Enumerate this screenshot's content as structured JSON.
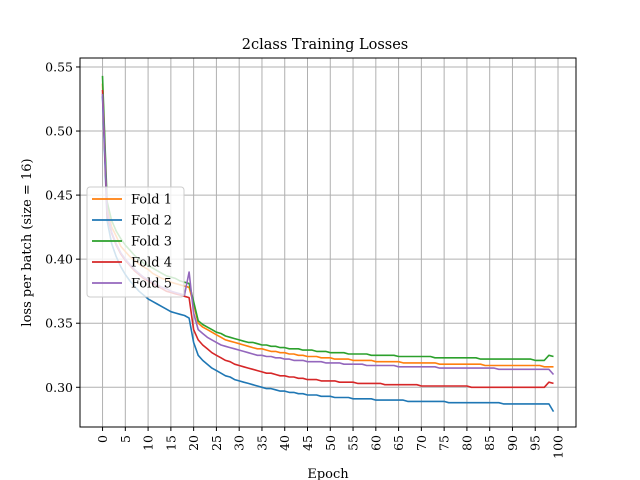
{
  "chart_data": {
    "type": "line",
    "title": "2class Training Losses",
    "xlabel": "Epoch",
    "ylabel": "loss per batch (size = 16)",
    "xlim": [
      -4.95,
      103.95
    ],
    "ylim": [
      0.269,
      0.557
    ],
    "x_ticks": [
      0,
      5,
      10,
      15,
      20,
      25,
      30,
      35,
      40,
      45,
      50,
      55,
      60,
      65,
      70,
      75,
      80,
      85,
      90,
      95,
      100
    ],
    "y_ticks": [
      0.3,
      0.35,
      0.4,
      0.45,
      0.5,
      0.55
    ],
    "y_tick_labels": [
      "0.30",
      "0.35",
      "0.40",
      "0.45",
      "0.50",
      "0.55"
    ],
    "grid": true,
    "legend_position": "center-left",
    "series": [
      {
        "name": "Fold 1",
        "color": "#ff7f0e",
        "values": [
          0.537,
          0.44,
          0.425,
          0.418,
          0.41,
          0.406,
          0.402,
          0.399,
          0.396,
          0.394,
          0.392,
          0.389,
          0.387,
          0.385,
          0.384,
          0.382,
          0.381,
          0.38,
          0.379,
          0.378,
          0.365,
          0.35,
          0.347,
          0.345,
          0.343,
          0.341,
          0.339,
          0.337,
          0.336,
          0.335,
          0.334,
          0.333,
          0.332,
          0.331,
          0.33,
          0.33,
          0.329,
          0.328,
          0.328,
          0.327,
          0.327,
          0.326,
          0.326,
          0.325,
          0.325,
          0.324,
          0.324,
          0.324,
          0.323,
          0.323,
          0.323,
          0.322,
          0.322,
          0.322,
          0.322,
          0.321,
          0.321,
          0.321,
          0.321,
          0.321,
          0.32,
          0.32,
          0.32,
          0.32,
          0.32,
          0.32,
          0.319,
          0.319,
          0.319,
          0.319,
          0.319,
          0.319,
          0.319,
          0.319,
          0.318,
          0.318,
          0.318,
          0.318,
          0.318,
          0.318,
          0.318,
          0.318,
          0.318,
          0.318,
          0.317,
          0.317,
          0.317,
          0.317,
          0.317,
          0.317,
          0.317,
          0.317,
          0.317,
          0.317,
          0.317,
          0.317,
          0.317,
          0.316,
          0.316,
          0.316
        ]
      },
      {
        "name": "Fold 2",
        "color": "#1f77b4",
        "values": [
          0.527,
          0.43,
          0.412,
          0.402,
          0.394,
          0.388,
          0.383,
          0.379,
          0.375,
          0.372,
          0.369,
          0.367,
          0.365,
          0.363,
          0.361,
          0.359,
          0.358,
          0.357,
          0.356,
          0.354,
          0.335,
          0.325,
          0.321,
          0.318,
          0.315,
          0.313,
          0.311,
          0.309,
          0.308,
          0.306,
          0.305,
          0.304,
          0.303,
          0.302,
          0.301,
          0.3,
          0.299,
          0.299,
          0.298,
          0.297,
          0.297,
          0.296,
          0.296,
          0.295,
          0.295,
          0.294,
          0.294,
          0.294,
          0.293,
          0.293,
          0.293,
          0.292,
          0.292,
          0.292,
          0.292,
          0.291,
          0.291,
          0.291,
          0.291,
          0.291,
          0.29,
          0.29,
          0.29,
          0.29,
          0.29,
          0.29,
          0.29,
          0.289,
          0.289,
          0.289,
          0.289,
          0.289,
          0.289,
          0.289,
          0.289,
          0.289,
          0.288,
          0.288,
          0.288,
          0.288,
          0.288,
          0.288,
          0.288,
          0.288,
          0.288,
          0.288,
          0.288,
          0.288,
          0.287,
          0.287,
          0.287,
          0.287,
          0.287,
          0.287,
          0.287,
          0.287,
          0.287,
          0.287,
          0.287,
          0.281
        ]
      },
      {
        "name": "Fold 3",
        "color": "#2ca02c",
        "values": [
          0.543,
          0.445,
          0.43,
          0.422,
          0.416,
          0.411,
          0.407,
          0.403,
          0.4,
          0.397,
          0.395,
          0.393,
          0.391,
          0.389,
          0.387,
          0.386,
          0.385,
          0.383,
          0.382,
          0.381,
          0.367,
          0.352,
          0.349,
          0.347,
          0.345,
          0.343,
          0.342,
          0.34,
          0.339,
          0.338,
          0.337,
          0.336,
          0.335,
          0.335,
          0.334,
          0.333,
          0.333,
          0.332,
          0.332,
          0.331,
          0.331,
          0.33,
          0.33,
          0.33,
          0.329,
          0.329,
          0.329,
          0.328,
          0.328,
          0.328,
          0.327,
          0.327,
          0.327,
          0.327,
          0.326,
          0.326,
          0.326,
          0.326,
          0.326,
          0.325,
          0.325,
          0.325,
          0.325,
          0.325,
          0.325,
          0.324,
          0.324,
          0.324,
          0.324,
          0.324,
          0.324,
          0.324,
          0.324,
          0.323,
          0.323,
          0.323,
          0.323,
          0.323,
          0.323,
          0.323,
          0.323,
          0.323,
          0.323,
          0.322,
          0.322,
          0.322,
          0.322,
          0.322,
          0.322,
          0.322,
          0.322,
          0.322,
          0.322,
          0.322,
          0.322,
          0.321,
          0.321,
          0.321,
          0.325,
          0.324
        ]
      },
      {
        "name": "Fold 4",
        "color": "#d62728",
        "values": [
          0.532,
          0.435,
          0.42,
          0.411,
          0.404,
          0.399,
          0.395,
          0.391,
          0.388,
          0.385,
          0.383,
          0.381,
          0.379,
          0.377,
          0.375,
          0.374,
          0.373,
          0.372,
          0.371,
          0.37,
          0.345,
          0.337,
          0.333,
          0.33,
          0.327,
          0.325,
          0.323,
          0.321,
          0.32,
          0.318,
          0.317,
          0.316,
          0.315,
          0.314,
          0.313,
          0.312,
          0.311,
          0.311,
          0.31,
          0.309,
          0.309,
          0.308,
          0.308,
          0.307,
          0.307,
          0.306,
          0.306,
          0.306,
          0.305,
          0.305,
          0.305,
          0.305,
          0.304,
          0.304,
          0.304,
          0.304,
          0.303,
          0.303,
          0.303,
          0.303,
          0.303,
          0.303,
          0.302,
          0.302,
          0.302,
          0.302,
          0.302,
          0.302,
          0.302,
          0.302,
          0.301,
          0.301,
          0.301,
          0.301,
          0.301,
          0.301,
          0.301,
          0.301,
          0.301,
          0.301,
          0.301,
          0.3,
          0.3,
          0.3,
          0.3,
          0.3,
          0.3,
          0.3,
          0.3,
          0.3,
          0.3,
          0.3,
          0.3,
          0.3,
          0.3,
          0.3,
          0.3,
          0.3,
          0.304,
          0.303
        ]
      },
      {
        "name": "Fold 5",
        "color": "#9467bd",
        "values": [
          0.529,
          0.438,
          0.421,
          0.412,
          0.405,
          0.4,
          0.396,
          0.392,
          0.389,
          0.386,
          0.384,
          0.382,
          0.38,
          0.378,
          0.377,
          0.375,
          0.374,
          0.373,
          0.372,
          0.39,
          0.358,
          0.345,
          0.342,
          0.339,
          0.337,
          0.335,
          0.333,
          0.332,
          0.331,
          0.33,
          0.329,
          0.328,
          0.327,
          0.326,
          0.325,
          0.325,
          0.324,
          0.324,
          0.323,
          0.323,
          0.322,
          0.322,
          0.321,
          0.321,
          0.321,
          0.32,
          0.32,
          0.32,
          0.32,
          0.319,
          0.319,
          0.319,
          0.319,
          0.318,
          0.318,
          0.318,
          0.318,
          0.318,
          0.317,
          0.317,
          0.317,
          0.317,
          0.317,
          0.317,
          0.317,
          0.316,
          0.316,
          0.316,
          0.316,
          0.316,
          0.316,
          0.316,
          0.316,
          0.316,
          0.315,
          0.315,
          0.315,
          0.315,
          0.315,
          0.315,
          0.315,
          0.315,
          0.315,
          0.315,
          0.315,
          0.315,
          0.315,
          0.314,
          0.314,
          0.314,
          0.314,
          0.314,
          0.314,
          0.314,
          0.314,
          0.314,
          0.314,
          0.314,
          0.314,
          0.31
        ]
      }
    ]
  }
}
